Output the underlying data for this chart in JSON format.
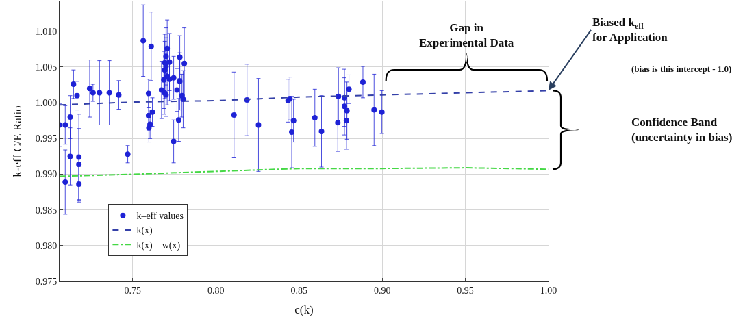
{
  "chart_data": {
    "type": "scatter",
    "xlabel": "c(k)",
    "ylabel": "k-eff C/E Ratio",
    "xlim": [
      0.706,
      1.0
    ],
    "ylim": [
      0.975,
      1.0142
    ],
    "xticks": [
      0.75,
      {
        "value": 0.8,
        "label": "0.80"
      },
      0.85,
      {
        "value": 0.9,
        "label": "0.90"
      },
      0.95,
      {
        "value": 1.0,
        "label": "1.00"
      }
    ],
    "yticks": [
      0.975,
      {
        "value": 0.98,
        "label": "0.980"
      },
      0.985,
      {
        "value": 0.99,
        "label": "0.990"
      },
      0.995,
      {
        "value": 1.0,
        "label": "1.000"
      },
      1.005,
      {
        "value": 1.01,
        "label": "1.010"
      }
    ],
    "grid": true,
    "legend": "bottom left",
    "annotations": [
      "Gap in\nExperimental Data",
      {
        "text": "Biased k$_{eff}$\nfor Application",
        "x": 1.0,
        "y": 1.00175
      },
      "(bias is this intercept - 1.0)",
      "Confidence Band\n(uncertainty in bias)"
    ],
    "series": [
      {
        "name": "k–eff values",
        "marker": "circle",
        "color": "#1e22d6",
        "x": [
          0.706,
          0.7094,
          0.7094,
          0.7124,
          0.7124,
          0.7144,
          0.7165,
          0.7176,
          0.7176,
          0.7176,
          0.7241,
          0.7261,
          0.73,
          0.7359,
          0.7416,
          0.747,
          0.7563,
          0.7611,
          0.7595,
          0.7595,
          0.7618,
          0.7604,
          0.7597,
          0.7746,
          0.7776,
          0.7707,
          0.77,
          0.7693,
          0.77,
          0.7721,
          0.7693,
          0.7687,
          0.7707,
          0.7721,
          0.7746,
          0.7673,
          0.769,
          0.77,
          0.7783,
          0.7783,
          0.7766,
          0.781,
          0.7796,
          0.7803,
          0.8109,
          0.8187,
          0.8256,
          0.8434,
          0.8445,
          0.8467,
          0.8456,
          0.8595,
          0.8635,
          0.8733,
          0.8737,
          0.8773,
          0.8773,
          0.8788,
          0.8785,
          0.88,
          0.8884,
          0.8951,
          0.8998
        ],
        "values": [
          0.9969,
          0.9969,
          0.9889,
          0.998,
          0.9925,
          1.0026,
          1.001,
          0.9924,
          0.9914,
          0.9886,
          1.002,
          1.0014,
          1.0014,
          1.0014,
          1.0011,
          0.9928,
          1.0087,
          1.0079,
          1.0013,
          0.9982,
          0.9987,
          0.997,
          0.9965,
          0.9946,
          0.9976,
          1.0076,
          1.0065,
          1.0056,
          1.0051,
          1.0057,
          1.0046,
          1.0032,
          1.0037,
          1.0033,
          1.0035,
          1.0018,
          1.0014,
          1.0011,
          1.0064,
          1.003,
          1.0018,
          1.0055,
          1.001,
          1.0005,
          0.9983,
          1.0004,
          0.9969,
          1.0003,
          1.0006,
          0.9975,
          0.9959,
          0.9979,
          0.996,
          0.9972,
          1.0009,
          1.0007,
          0.9995,
          0.9989,
          0.9975,
          1.0019,
          1.0029,
          0.999,
          0.9987
        ],
        "errors": [
          0.003,
          0.0027,
          0.0045,
          0.003,
          0.004,
          0.002,
          0.002,
          0.006,
          0.005,
          0.0025,
          0.004,
          0.0012,
          0.0045,
          0.0045,
          0.002,
          0.0012,
          0.005,
          0.0048,
          0.002,
          0.002,
          0.002,
          0.002,
          0.002,
          0.003,
          0.003,
          0.004,
          0.004,
          0.004,
          0.004,
          0.004,
          0.004,
          0.004,
          0.004,
          0.003,
          0.003,
          0.004,
          0.003,
          0.003,
          0.003,
          0.004,
          0.003,
          0.005,
          0.003,
          0.004,
          0.006,
          0.005,
          0.0065,
          0.003,
          0.003,
          0.003,
          0.005,
          0.004,
          0.005,
          0.004,
          0.004,
          0.004,
          0.004,
          0.004,
          0.004,
          0.002,
          0.0022,
          0.005,
          0.003
        ]
      },
      {
        "name": "k(x)",
        "type": "line",
        "line_style": "dashed",
        "color": "#3440a8",
        "x": [
          0.706,
          0.75,
          0.8,
          0.85,
          0.9,
          0.95,
          1.0
        ],
        "values": [
          0.9997,
          1.0001,
          1.0003,
          1.0008,
          1.0011,
          1.0014,
          1.0017
        ]
      },
      {
        "name": "k(x) – w(x)",
        "type": "line",
        "line_style": "dashdot",
        "color": "#45d845",
        "x": [
          0.706,
          0.75,
          0.8,
          0.85,
          0.9,
          0.95,
          1.0
        ],
        "values": [
          0.9897,
          0.99,
          0.9904,
          0.9908,
          0.9908,
          0.9909,
          0.9907
        ]
      }
    ]
  }
}
